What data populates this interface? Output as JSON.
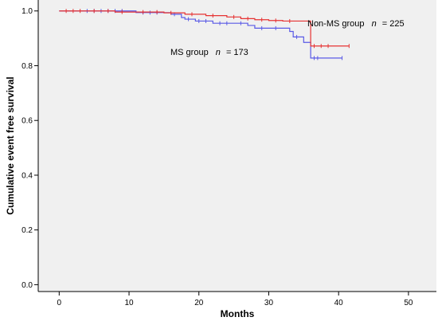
{
  "chart_data": {
    "type": "line",
    "style": "step",
    "xlabel": "Months",
    "ylabel": "Cumulative event free survival",
    "xlim": [
      -3,
      54
    ],
    "ylim": [
      -0.025,
      1.04
    ],
    "xticks": [
      0,
      10,
      20,
      30,
      40,
      50
    ],
    "xtick_labels": [
      "0",
      "10",
      "20",
      "30",
      "40",
      "50"
    ],
    "yticks": [
      0.0,
      0.2,
      0.4,
      0.6,
      0.8,
      1.0
    ],
    "ytick_labels": [
      "0.0",
      "0.2",
      "0.4",
      "0.6",
      "0.8",
      "1.0"
    ],
    "grid": false,
    "plot_background": "#f0f0f0",
    "series": [
      {
        "name": "MS group",
        "color": "#5a5ae6",
        "x": [
          0,
          4,
          11,
          16,
          17.5,
          18,
          19.5,
          22,
          27,
          28,
          33,
          33.5,
          35,
          36,
          40.5
        ],
        "y": [
          1.0,
          1.0,
          0.994,
          0.988,
          0.976,
          0.97,
          0.963,
          0.955,
          0.947,
          0.937,
          0.925,
          0.905,
          0.885,
          0.828,
          0.828
        ],
        "censor_x": [
          4,
          5,
          6,
          7,
          8,
          9,
          12,
          13,
          14,
          16.5,
          18.5,
          20,
          21,
          23,
          24,
          26,
          29,
          31,
          34,
          36.5,
          37,
          40.5
        ]
      },
      {
        "name": "Non-MS group",
        "color": "#e63232",
        "x": [
          0,
          8,
          15,
          18,
          21,
          24,
          26,
          28,
          30,
          32,
          36,
          41.5
        ],
        "y": [
          1.0,
          0.996,
          0.993,
          0.988,
          0.983,
          0.978,
          0.972,
          0.968,
          0.965,
          0.963,
          0.872,
          0.872
        ],
        "censor_x": [
          1,
          2,
          3,
          5,
          7,
          9,
          12,
          14,
          16,
          19,
          22,
          25,
          27,
          29,
          31,
          33,
          36.5,
          37.5,
          38.5,
          41.5
        ]
      }
    ],
    "annotations": [
      {
        "label": "Non-MS group",
        "n_symbol": "n",
        "n_text": "=  225",
        "series": "Non-MS group"
      },
      {
        "label": "MS group",
        "n_symbol": "n",
        "n_text": "= 173",
        "series": "MS group"
      }
    ]
  }
}
